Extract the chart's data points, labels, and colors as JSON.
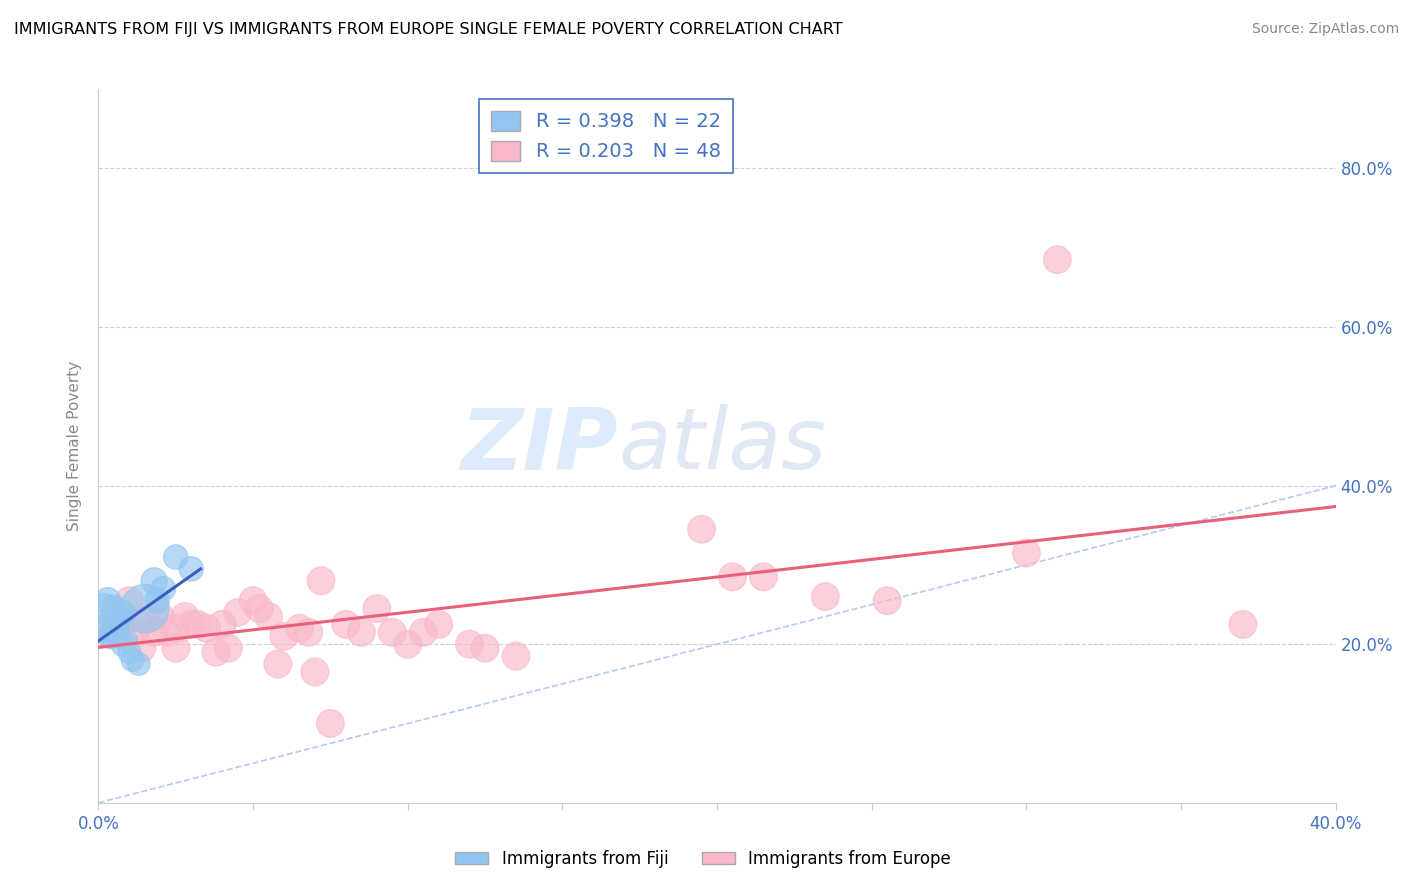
{
  "title": "IMMIGRANTS FROM FIJI VS IMMIGRANTS FROM EUROPE SINGLE FEMALE POVERTY CORRELATION CHART",
  "source": "Source: ZipAtlas.com",
  "ylabel": "Single Female Poverty",
  "xlim": [
    0.0,
    0.4
  ],
  "ylim": [
    0.0,
    0.9
  ],
  "x_ticks": [
    0.0,
    0.05,
    0.1,
    0.15,
    0.2,
    0.25,
    0.3,
    0.35,
    0.4
  ],
  "y_ticks": [
    0.2,
    0.4,
    0.6,
    0.8
  ],
  "fiji_R": 0.398,
  "fiji_N": 22,
  "europe_R": 0.203,
  "europe_N": 48,
  "fiji_color": "#92c5f0",
  "fiji_edge_color": "#92c5f0",
  "europe_color": "#f9b8c8",
  "europe_edge_color": "#f9b8c8",
  "fiji_line_color": "#3b5dbf",
  "europe_line_color": "#e8607a",
  "diag_line_color": "#aac5f0",
  "fiji_points": [
    [
      0.0015,
      0.245
    ],
    [
      0.002,
      0.22
    ],
    [
      0.003,
      0.255
    ],
    [
      0.004,
      0.21
    ],
    [
      0.004,
      0.21
    ],
    [
      0.005,
      0.245
    ],
    [
      0.005,
      0.22
    ],
    [
      0.006,
      0.225
    ],
    [
      0.006,
      0.215
    ],
    [
      0.007,
      0.235
    ],
    [
      0.008,
      0.2
    ],
    [
      0.008,
      0.24
    ],
    [
      0.009,
      0.205
    ],
    [
      0.01,
      0.19
    ],
    [
      0.011,
      0.18
    ],
    [
      0.013,
      0.175
    ],
    [
      0.015,
      0.245
    ],
    [
      0.018,
      0.28
    ],
    [
      0.019,
      0.255
    ],
    [
      0.021,
      0.27
    ],
    [
      0.025,
      0.31
    ],
    [
      0.03,
      0.295
    ]
  ],
  "europe_points": [
    [
      0.002,
      0.215
    ],
    [
      0.005,
      0.235
    ],
    [
      0.008,
      0.225
    ],
    [
      0.01,
      0.255
    ],
    [
      0.012,
      0.215
    ],
    [
      0.014,
      0.195
    ],
    [
      0.015,
      0.23
    ],
    [
      0.018,
      0.215
    ],
    [
      0.02,
      0.235
    ],
    [
      0.022,
      0.215
    ],
    [
      0.025,
      0.22
    ],
    [
      0.025,
      0.195
    ],
    [
      0.028,
      0.235
    ],
    [
      0.03,
      0.225
    ],
    [
      0.032,
      0.225
    ],
    [
      0.035,
      0.22
    ],
    [
      0.038,
      0.19
    ],
    [
      0.04,
      0.225
    ],
    [
      0.042,
      0.195
    ],
    [
      0.045,
      0.24
    ],
    [
      0.05,
      0.255
    ],
    [
      0.052,
      0.245
    ],
    [
      0.055,
      0.235
    ],
    [
      0.058,
      0.175
    ],
    [
      0.06,
      0.21
    ],
    [
      0.065,
      0.22
    ],
    [
      0.068,
      0.215
    ],
    [
      0.07,
      0.165
    ],
    [
      0.072,
      0.28
    ],
    [
      0.075,
      0.1
    ],
    [
      0.08,
      0.225
    ],
    [
      0.085,
      0.215
    ],
    [
      0.09,
      0.245
    ],
    [
      0.095,
      0.215
    ],
    [
      0.1,
      0.2
    ],
    [
      0.105,
      0.215
    ],
    [
      0.11,
      0.225
    ],
    [
      0.12,
      0.2
    ],
    [
      0.125,
      0.195
    ],
    [
      0.135,
      0.185
    ],
    [
      0.195,
      0.345
    ],
    [
      0.205,
      0.285
    ],
    [
      0.215,
      0.285
    ],
    [
      0.235,
      0.26
    ],
    [
      0.255,
      0.255
    ],
    [
      0.3,
      0.315
    ],
    [
      0.31,
      0.685
    ],
    [
      0.37,
      0.225
    ]
  ],
  "fiji_sizes": [
    22,
    18,
    16,
    14,
    14,
    16,
    14,
    14,
    14,
    14,
    14,
    14,
    12,
    12,
    12,
    12,
    55,
    16,
    14,
    14,
    14,
    14
  ],
  "europe_sizes": [
    18,
    18,
    18,
    18,
    18,
    18,
    18,
    18,
    18,
    18,
    18,
    18,
    18,
    18,
    18,
    18,
    18,
    18,
    18,
    18,
    18,
    18,
    18,
    18,
    18,
    18,
    18,
    18,
    18,
    18,
    18,
    18,
    18,
    18,
    18,
    18,
    18,
    18,
    18,
    18,
    18,
    18,
    18,
    18,
    18,
    18,
    18,
    18
  ]
}
